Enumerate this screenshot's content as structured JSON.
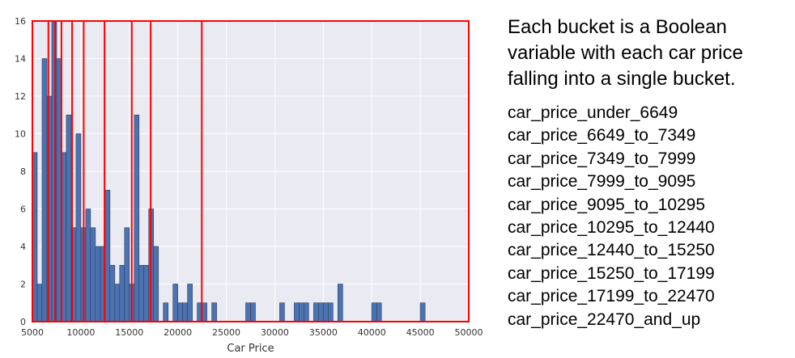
{
  "description": "Each bucket is a Boolean variable with each car price falling into a single bucket.",
  "buckets": [
    "car_price_under_6649",
    "car_price_6649_to_7349",
    "car_price_7349_to_7999",
    "car_price_7999_to_9095",
    "car_price_9095_to_10295",
    "car_price_10295_to_12440",
    "car_price_12440_to_15250",
    "car_price_15250_to_17199",
    "car_price_17199_to_22470",
    "car_price_22470_and_up"
  ],
  "chart_data": {
    "type": "bar",
    "xlabel": "Car Price",
    "ylabel": "",
    "xlim": [
      5000,
      50000
    ],
    "ylim": [
      0,
      16
    ],
    "xticks": [
      5000,
      10000,
      15000,
      20000,
      25000,
      30000,
      35000,
      40000,
      45000,
      50000
    ],
    "yticks": [
      0,
      2,
      4,
      6,
      8,
      10,
      12,
      14,
      16
    ],
    "grid": true,
    "bin_width": 500,
    "bin_starts": [
      5000,
      5500,
      6000,
      6500,
      7000,
      7500,
      8000,
      8500,
      9000,
      9500,
      10000,
      10500,
      11000,
      11500,
      12000,
      12500,
      13000,
      13500,
      14000,
      14500,
      15000,
      15500,
      16000,
      16500,
      17000,
      17500,
      18000,
      18500,
      19000,
      19500,
      20000,
      20500,
      21000,
      21500,
      22000,
      22500,
      23000,
      23500,
      24000,
      24500,
      25000,
      25500,
      26000,
      26500,
      27000,
      27500,
      28000,
      28500,
      29000,
      29500,
      30000,
      30500,
      31000,
      31500,
      32000,
      32500,
      33000,
      33500,
      34000,
      34500,
      35000,
      35500,
      36000,
      36500,
      37000,
      37500,
      38000,
      38500,
      39000,
      39500,
      40000,
      40500,
      41000,
      41500,
      42000,
      42500,
      43000,
      43500,
      44000,
      44500,
      45000
    ],
    "values": [
      9,
      2,
      14,
      12,
      16,
      14,
      9,
      11,
      5,
      10,
      5,
      6,
      5,
      4,
      4,
      7,
      3,
      2,
      3,
      5,
      2,
      11,
      3,
      3,
      6,
      4,
      0,
      1,
      0,
      2,
      1,
      1,
      2,
      0,
      1,
      1,
      0,
      1,
      0,
      0,
      0,
      0,
      0,
      0,
      1,
      1,
      0,
      0,
      0,
      0,
      0,
      1,
      0,
      0,
      1,
      1,
      1,
      0,
      1,
      1,
      1,
      1,
      0,
      2,
      0,
      0,
      0,
      0,
      0,
      0,
      1,
      1,
      0,
      0,
      0,
      0,
      0,
      0,
      0,
      0,
      1
    ],
    "bucket_boundaries": [
      6649,
      7349,
      7999,
      9095,
      10295,
      12440,
      15250,
      17199,
      22470
    ],
    "colors": {
      "bar": "#4c72b0",
      "bar_edge": "#2a3f66",
      "background": "#eaeaf2",
      "grid": "#ffffff",
      "bucket": "#ff0000"
    }
  }
}
